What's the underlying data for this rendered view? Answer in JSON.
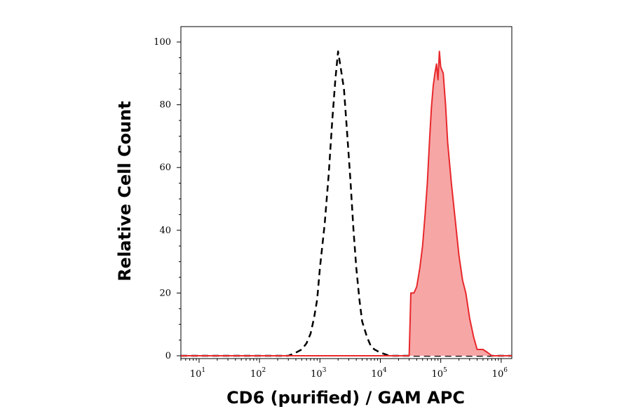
{
  "chart_data": {
    "type": "area",
    "xlabel": "CD6 (purified) / GAM APC",
    "ylabel": "Relative Cell Count",
    "x_scale": "log",
    "xlim": [
      5,
      1500000
    ],
    "ylim": [
      0,
      104
    ],
    "x_ticks": [
      {
        "base": "10",
        "exp": "1",
        "value": 10
      },
      {
        "base": "10",
        "exp": "2",
        "value": 100
      },
      {
        "base": "10",
        "exp": "3",
        "value": 1000
      },
      {
        "base": "10",
        "exp": "4",
        "value": 10000
      },
      {
        "base": "10",
        "exp": "5",
        "value": 100000
      },
      {
        "base": "10",
        "exp": "6",
        "value": 1000000
      }
    ],
    "y_ticks": [
      0,
      20,
      40,
      60,
      80,
      100
    ],
    "grid": false,
    "series": [
      {
        "style": "dashed",
        "color": "#000000",
        "x": [
          5,
          300,
          400,
          500,
          600,
          700,
          800,
          900,
          1000,
          1200,
          1400,
          1600,
          1800,
          2000,
          2200,
          2500,
          2800,
          3200,
          3600,
          4000,
          4500,
          5000,
          6000,
          7000,
          8000,
          10000,
          12000,
          14000,
          1500000
        ],
        "y": [
          0,
          0,
          1,
          2,
          4,
          7,
          12,
          18,
          28,
          42,
          58,
          75,
          88,
          97,
          92,
          85,
          72,
          56,
          40,
          28,
          18,
          11,
          6,
          3,
          2,
          1,
          0.5,
          0,
          0
        ]
      },
      {
        "style": "filled",
        "color": "#e8282b",
        "fill": "#f7a6a6",
        "x": [
          5,
          30000,
          32000,
          36000,
          40000,
          45000,
          50000,
          55000,
          60000,
          65000,
          70000,
          75000,
          80000,
          85000,
          90000,
          95000,
          100000,
          110000,
          120000,
          130000,
          150000,
          170000,
          200000,
          230000,
          260000,
          300000,
          350000,
          400000,
          500000,
          600000,
          700000,
          1500000
        ],
        "y": [
          0,
          0,
          20,
          20,
          22,
          28,
          35,
          45,
          55,
          68,
          79,
          86,
          90,
          93,
          88,
          97,
          92,
          90,
          80,
          68,
          55,
          45,
          32,
          24,
          20,
          12,
          6,
          2,
          2,
          1,
          0,
          0
        ]
      }
    ]
  }
}
